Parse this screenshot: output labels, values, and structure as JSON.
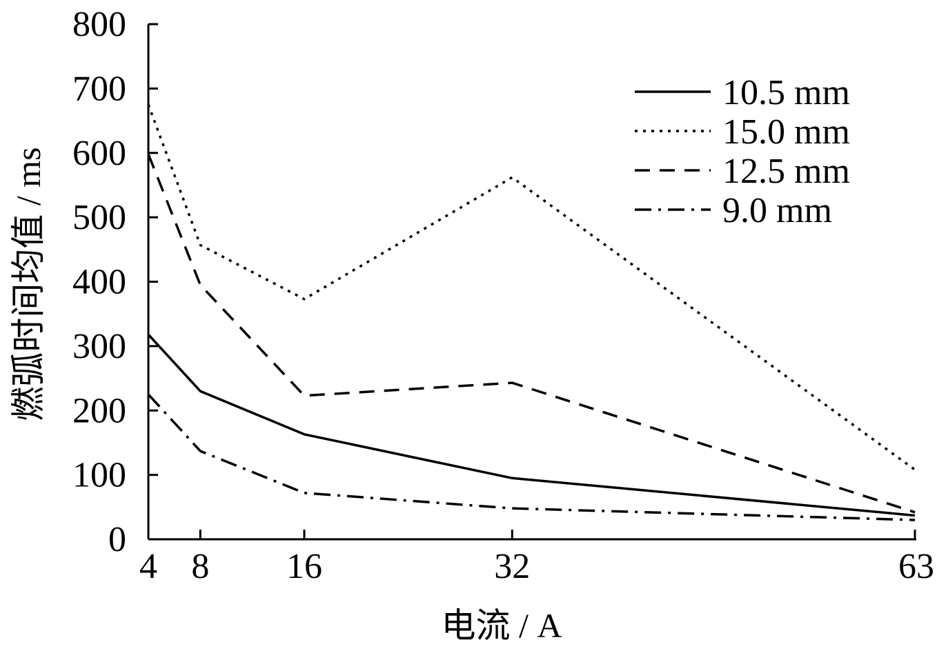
{
  "chart_data": {
    "type": "line",
    "xlabel": "电流 / A",
    "ylabel": "燃弧时间均值 / ms",
    "x": [
      4,
      8,
      16,
      32,
      63
    ],
    "xticks": [
      4,
      8,
      16,
      32,
      63
    ],
    "yticks": [
      0,
      100,
      200,
      300,
      400,
      500,
      600,
      700,
      800
    ],
    "xlim": [
      4,
      63
    ],
    "ylim": [
      0,
      800
    ],
    "grid": false,
    "legend_position": "top-right",
    "series": [
      {
        "name": "10.5 mm",
        "style": "solid",
        "values": [
          318,
          230,
          163,
          95,
          37
        ]
      },
      {
        "name": "15.0 mm",
        "style": "dotted",
        "values": [
          675,
          457,
          373,
          562,
          108
        ]
      },
      {
        "name": "12.5 mm",
        "style": "dashed",
        "values": [
          598,
          395,
          223,
          243,
          42
        ]
      },
      {
        "name": "9.0 mm",
        "style": "dashdot",
        "values": [
          225,
          137,
          72,
          48,
          30
        ]
      }
    ]
  }
}
